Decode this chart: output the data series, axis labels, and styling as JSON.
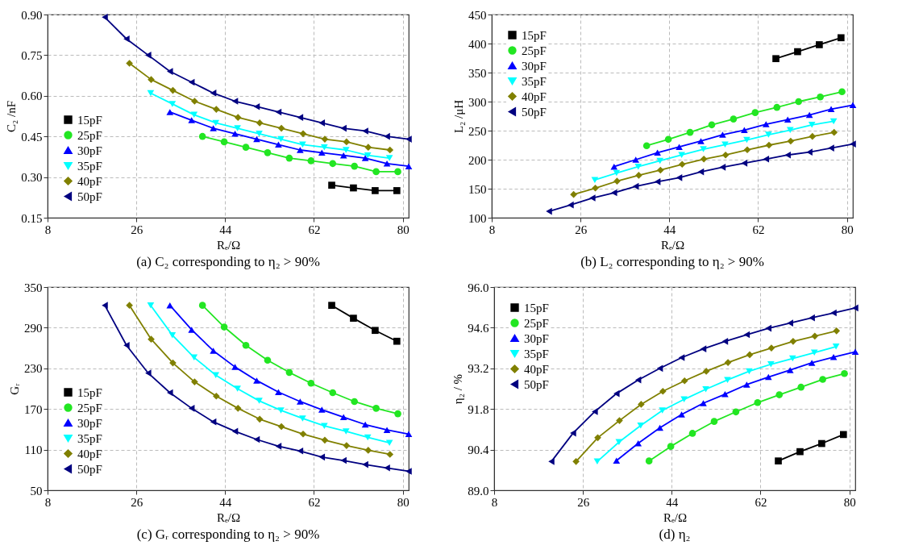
{
  "chart_data": [
    {
      "type": "line",
      "title": "(a) C₂ corresponding to η₂ > 90%",
      "xlabel": "Rₑ/Ω",
      "ylabel": "C₂ /nF",
      "xlim": [
        8,
        81.2
      ],
      "xticks": [
        8,
        26,
        44,
        62,
        80
      ],
      "ylim": [
        0.15,
        0.9
      ],
      "yticks": [
        0.15,
        {
          "value": 0.3,
          "label": "0.30"
        },
        0.45,
        {
          "value": 0.6,
          "label": "0.60"
        },
        0.75,
        {
          "value": 0.9,
          "label": "0.90"
        }
      ],
      "grid": true,
      "legend": "bottom left",
      "series": [
        {
          "name": "15pF",
          "color": "#000000",
          "marker": "square",
          "x": [
            65.6,
            70,
            74.4,
            78.8
          ],
          "values": [
            0.27,
            0.26,
            0.25,
            0.25
          ]
        },
        {
          "name": "25pF",
          "color": "#22e622",
          "marker": "circle",
          "x": [
            39.4,
            43.8,
            48.2,
            52.6,
            57,
            61.4,
            65.8,
            70.2,
            74.6,
            79
          ],
          "values": [
            0.45,
            0.43,
            0.41,
            0.39,
            0.37,
            0.36,
            0.35,
            0.34,
            0.32,
            0.32
          ]
        },
        {
          "name": "30pF",
          "color": "#0000ff",
          "marker": "triangle",
          "x": [
            32.8,
            37.2,
            41.6,
            46,
            50.4,
            54.8,
            59.2,
            63.6,
            68,
            72.4,
            76.8,
            81.2
          ],
          "values": [
            0.54,
            0.51,
            0.48,
            0.46,
            0.44,
            0.42,
            0.4,
            0.39,
            0.38,
            0.37,
            0.35,
            0.34
          ]
        },
        {
          "name": "35pF",
          "color": "#00ffff",
          "marker": "triangle-down",
          "x": [
            28.9,
            33.3,
            37.7,
            42.1,
            46.5,
            50.9,
            55.3,
            59.7,
            64.1,
            68.5,
            72.9,
            77.3
          ],
          "values": [
            0.61,
            0.57,
            0.53,
            0.5,
            0.48,
            0.46,
            0.44,
            0.42,
            0.41,
            0.4,
            0.38,
            0.37
          ]
        },
        {
          "name": "40pF",
          "color": "#808000",
          "marker": "diamond",
          "x": [
            24.6,
            29,
            33.4,
            37.8,
            42.2,
            46.6,
            51,
            55.4,
            59.8,
            64.2,
            68.6,
            73,
            77.4
          ],
          "values": [
            0.72,
            0.66,
            0.62,
            0.58,
            0.55,
            0.52,
            0.5,
            0.48,
            0.46,
            0.44,
            0.43,
            0.41,
            0.4
          ]
        },
        {
          "name": "50pF",
          "color": "#000080",
          "marker": "triangle-left",
          "x": [
            19.6,
            24,
            28.4,
            32.8,
            37.2,
            41.6,
            46,
            50.4,
            54.8,
            59.2,
            63.6,
            68,
            72.4,
            76.8,
            81.2
          ],
          "values": [
            0.89,
            0.81,
            0.75,
            0.69,
            0.65,
            0.61,
            0.58,
            0.56,
            0.54,
            0.52,
            0.5,
            0.48,
            0.47,
            0.45,
            0.44
          ]
        }
      ]
    },
    {
      "type": "line",
      "title": "(b) L₂ corresponding to η₂ > 90%",
      "xlabel": "Rₑ/Ω",
      "ylabel": "L₂ /μH",
      "xlim": [
        8,
        81.2
      ],
      "xticks": [
        8,
        26,
        44,
        62,
        80
      ],
      "ylim": [
        100,
        450
      ],
      "yticks": [
        100,
        150,
        200,
        250,
        300,
        350,
        400,
        450
      ],
      "grid": true,
      "legend": "top left",
      "series": [
        {
          "name": "15pF",
          "color": "#000000",
          "marker": "square",
          "x": [
            65.6,
            70,
            74.4,
            78.8
          ],
          "values": [
            374,
            386,
            398,
            410
          ]
        },
        {
          "name": "25pF",
          "color": "#22e622",
          "marker": "circle",
          "x": [
            39.4,
            43.8,
            48.2,
            52.6,
            57,
            61.4,
            65.8,
            70.2,
            74.6,
            79
          ],
          "values": [
            224,
            235,
            247,
            260,
            270,
            281,
            290,
            300,
            308,
            317
          ]
        },
        {
          "name": "30pF",
          "color": "#0000ff",
          "marker": "triangle",
          "x": [
            32.8,
            37.2,
            41.6,
            46,
            50.4,
            54.8,
            59.2,
            63.6,
            68,
            72.4,
            76.8,
            81.2
          ],
          "values": [
            188,
            200,
            212,
            222,
            232,
            243,
            251,
            261,
            269,
            277,
            287,
            294
          ]
        },
        {
          "name": "35pF",
          "color": "#00ffff",
          "marker": "triangle-down",
          "x": [
            28.9,
            33.3,
            37.7,
            42.1,
            46.5,
            50.9,
            55.3,
            59.7,
            64.1,
            68.5,
            72.9,
            77.3
          ],
          "values": [
            165,
            177,
            188,
            198,
            208,
            218,
            226,
            234,
            243,
            251,
            260,
            266
          ]
        },
        {
          "name": "40pF",
          "color": "#808000",
          "marker": "diamond",
          "x": [
            24.6,
            29,
            33.4,
            37.8,
            42.2,
            46.6,
            51,
            55.4,
            59.8,
            64.2,
            68.6,
            73,
            77.4
          ],
          "values": [
            140,
            151,
            163,
            173,
            182,
            192,
            201,
            208,
            217,
            225,
            232,
            240,
            247
          ]
        },
        {
          "name": "50pF",
          "color": "#000080",
          "marker": "triangle-left",
          "x": [
            19.6,
            24,
            28.4,
            32.8,
            37.2,
            41.6,
            46,
            50.4,
            54.8,
            59.2,
            63.6,
            68,
            72.4,
            76.8,
            81.2
          ],
          "values": [
            111,
            122,
            134,
            143,
            154,
            162,
            169,
            179,
            187,
            194,
            201,
            208,
            213,
            220,
            227
          ]
        }
      ]
    },
    {
      "type": "line",
      "title": "(c) Gᵣ corresponding to η₂ > 90%",
      "xlabel": "Rₑ/Ω",
      "ylabel": "Gᵣ",
      "xlim": [
        8,
        81.2
      ],
      "xticks": [
        8,
        26,
        44,
        62,
        80
      ],
      "ylim": [
        50,
        350
      ],
      "yticks": [
        50,
        110,
        170,
        230,
        290,
        350
      ],
      "grid": true,
      "legend": "bottom left",
      "series": [
        {
          "name": "15pF",
          "color": "#000000",
          "marker": "square",
          "x": [
            65.6,
            70,
            74.4,
            78.8
          ],
          "values": [
            323,
            304,
            286,
            270
          ]
        },
        {
          "name": "25pF",
          "color": "#22e622",
          "marker": "circle",
          "x": [
            39.4,
            43.8,
            48.2,
            52.6,
            57,
            61.4,
            65.8,
            70.2,
            74.6,
            79
          ],
          "values": [
            323,
            291,
            264,
            242,
            224,
            208,
            194,
            181,
            171,
            163
          ]
        },
        {
          "name": "30pF",
          "color": "#0000ff",
          "marker": "triangle",
          "x": [
            32.8,
            37.2,
            41.6,
            46,
            50.4,
            54.8,
            59.2,
            63.6,
            68,
            72.4,
            76.8,
            81.2
          ],
          "values": [
            323,
            287,
            256,
            232,
            212,
            195,
            181,
            169,
            158,
            147,
            139,
            133
          ]
        },
        {
          "name": "35pF",
          "color": "#00ffff",
          "marker": "triangle-down",
          "x": [
            28.9,
            33.3,
            37.7,
            42.1,
            46.5,
            50.9,
            55.3,
            59.7,
            64.1,
            68.5,
            72.9,
            77.3
          ],
          "values": [
            323,
            279,
            246,
            220,
            200,
            182,
            168,
            156,
            145,
            137,
            128,
            120
          ]
        },
        {
          "name": "40pF",
          "color": "#808000",
          "marker": "diamond",
          "x": [
            24.6,
            29,
            33.4,
            37.8,
            42.2,
            46.6,
            51,
            55.4,
            59.8,
            64.2,
            68.6,
            73,
            77.4
          ],
          "values": [
            323,
            273,
            238,
            210,
            189,
            171,
            155,
            144,
            133,
            124,
            116,
            109,
            103
          ]
        },
        {
          "name": "50pF",
          "color": "#000080",
          "marker": "triangle-left",
          "x": [
            19.6,
            24,
            28.4,
            32.8,
            37.2,
            41.6,
            46,
            50.4,
            54.8,
            59.2,
            63.6,
            68,
            72.4,
            76.8,
            81.2
          ],
          "values": [
            323,
            264,
            223,
            194,
            171,
            151,
            137,
            125,
            115,
            108,
            99,
            94,
            88,
            83,
            78
          ]
        }
      ]
    },
    {
      "type": "line",
      "title": "(d) η₂",
      "xlabel": "Rₑ/Ω",
      "ylabel": "η₂ / %",
      "xlim": [
        8,
        81.2
      ],
      "xticks": [
        8,
        26,
        44,
        62,
        80
      ],
      "ylim": [
        89,
        96
      ],
      "yticks": [
        {
          "value": 89,
          "label": "89.0"
        },
        90.4,
        91.8,
        93.2,
        94.6,
        {
          "value": 96,
          "label": "96.0"
        }
      ],
      "grid": true,
      "legend": "top left",
      "series": [
        {
          "name": "15pF",
          "color": "#000000",
          "marker": "square",
          "x": [
            65.6,
            70,
            74.4,
            78.8
          ],
          "values": [
            90.01,
            90.33,
            90.61,
            90.92
          ]
        },
        {
          "name": "25pF",
          "color": "#22e622",
          "marker": "circle",
          "x": [
            39.4,
            43.8,
            48.2,
            52.6,
            57,
            61.4,
            65.8,
            70.2,
            74.6,
            79
          ],
          "values": [
            90.01,
            90.51,
            90.96,
            91.37,
            91.7,
            92.02,
            92.29,
            92.55,
            92.82,
            93.02
          ]
        },
        {
          "name": "30pF",
          "color": "#0000ff",
          "marker": "triangle",
          "x": [
            32.8,
            37.2,
            41.6,
            46,
            50.4,
            54.8,
            59.2,
            63.6,
            68,
            72.4,
            76.8,
            81.2
          ],
          "values": [
            90.02,
            90.62,
            91.15,
            91.61,
            92,
            92.31,
            92.64,
            92.9,
            93.14,
            93.39,
            93.59,
            93.77
          ]
        },
        {
          "name": "35pF",
          "color": "#00ffff",
          "marker": "triangle-down",
          "x": [
            28.9,
            33.3,
            37.7,
            42.1,
            46.5,
            50.9,
            55.3,
            59.7,
            64.1,
            68.5,
            72.9,
            77.3
          ],
          "values": [
            89.99,
            90.66,
            91.23,
            91.75,
            92.13,
            92.48,
            92.8,
            93.1,
            93.34,
            93.54,
            93.74,
            93.95
          ]
        },
        {
          "name": "40pF",
          "color": "#808000",
          "marker": "diamond",
          "x": [
            24.6,
            29,
            33.4,
            37.8,
            42.2,
            46.6,
            51,
            55.4,
            59.8,
            64.2,
            68.6,
            73,
            77.4
          ],
          "values": [
            89.99,
            90.81,
            91.4,
            91.96,
            92.41,
            92.77,
            93.1,
            93.4,
            93.67,
            93.9,
            94.13,
            94.31,
            94.49
          ]
        },
        {
          "name": "50pF",
          "color": "#000080",
          "marker": "triangle-left",
          "x": [
            19.6,
            24,
            28.4,
            32.8,
            37.2,
            41.6,
            46,
            50.4,
            54.8,
            59.2,
            63.6,
            68,
            72.4,
            76.8,
            81.2
          ],
          "values": [
            89.99,
            90.97,
            91.71,
            92.33,
            92.8,
            93.2,
            93.57,
            93.87,
            94.13,
            94.36,
            94.58,
            94.76,
            94.94,
            95.11,
            95.28
          ]
        }
      ]
    }
  ]
}
